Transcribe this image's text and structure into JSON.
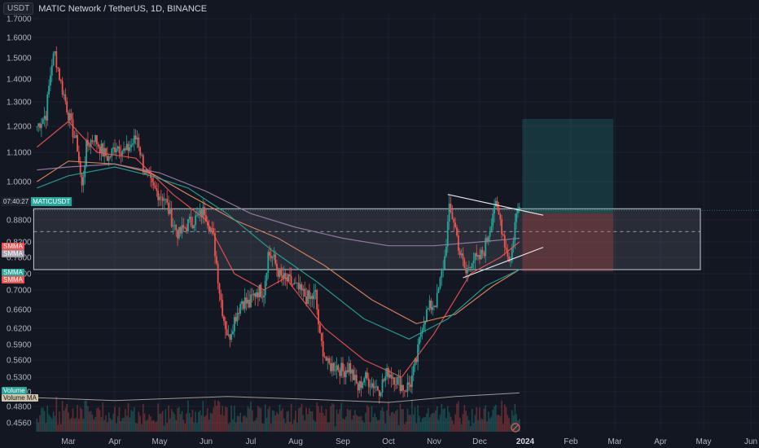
{
  "header": {
    "currency": "USDT",
    "title": "MATIC Network / TetherUS, 1D, BINANCE"
  },
  "price_tag": {
    "countdown": "07:40:27",
    "symbol": "MATICUSDT"
  },
  "indicator_tags": [
    {
      "text": "SMMA",
      "color": "#ef5350",
      "y": 298
    },
    {
      "text": "SMMA",
      "color": "#9e9ea8",
      "y": 307
    },
    {
      "text": "SMMA",
      "color": "#26a69a",
      "y": 330
    },
    {
      "text": "SMMA",
      "color": "#ef5350",
      "y": 339
    },
    {
      "text": "Volume",
      "color": "#26a69a",
      "y": 475
    },
    {
      "text": "Volume MA",
      "color": "#d1c4a8",
      "y": 484
    }
  ],
  "colors": {
    "up": "#26a69a",
    "down": "#ef5350",
    "background": "#131722",
    "grid": "#1e2230",
    "smma_red": "#f05450",
    "smma_orange": "#e78a5b",
    "smma_purple": "#9c7fa8",
    "smma_teal": "#26a69a"
  },
  "chart_data": {
    "type": "candlestick",
    "title": "MATIC Network / TetherUS, 1D, BINANCE",
    "y_ticks": [
      "1.7000",
      "1.6000",
      "1.5000",
      "1.4000",
      "1.3000",
      "1.2000",
      "1.1000",
      "1.0000",
      "0.8800",
      "0.8200",
      "0.7800",
      "0.7400",
      "0.7000",
      "0.6600",
      "0.6200",
      "0.5900",
      "0.5600",
      "0.5300",
      "0.5050",
      "0.4800",
      "0.4560"
    ],
    "y_tick_values": [
      1.7,
      1.6,
      1.5,
      1.4,
      1.3,
      1.2,
      1.1,
      1.0,
      0.88,
      0.82,
      0.78,
      0.74,
      0.7,
      0.66,
      0.62,
      0.59,
      0.56,
      0.53,
      0.505,
      0.48,
      0.456
    ],
    "x_ticks": [
      "Mar",
      "Apr",
      "May",
      "Jun",
      "Jul",
      "Aug",
      "Sep",
      "Oct",
      "Nov",
      "Dec",
      "2024",
      "Feb",
      "Mar",
      "Apr",
      "May",
      "Jun"
    ],
    "x_tick_dates": [
      "2023-03-01",
      "2023-04-01",
      "2023-05-01",
      "2023-06-01",
      "2023-07-01",
      "2023-08-01",
      "2023-09-01",
      "2023-10-01",
      "2023-11-01",
      "2023-12-01",
      "2024-01-01",
      "2024-02-01",
      "2024-03-01",
      "2024-04-01",
      "2024-05-01",
      "2024-06-01"
    ],
    "start_date": "2023-02-08",
    "close_anchors": [
      [
        "2023-02-08",
        1.2
      ],
      [
        "2023-02-14",
        1.25
      ],
      [
        "2023-02-18",
        1.48
      ],
      [
        "2023-02-20",
        1.52
      ],
      [
        "2023-02-24",
        1.38
      ],
      [
        "2023-03-03",
        1.2
      ],
      [
        "2023-03-07",
        1.12
      ],
      [
        "2023-03-10",
        0.98
      ],
      [
        "2023-03-13",
        1.12
      ],
      [
        "2023-03-18",
        1.16
      ],
      [
        "2023-03-24",
        1.1
      ],
      [
        "2023-03-28",
        1.08
      ],
      [
        "2023-04-02",
        1.13
      ],
      [
        "2023-04-08",
        1.1
      ],
      [
        "2023-04-12",
        1.13
      ],
      [
        "2023-04-16",
        1.16
      ],
      [
        "2023-04-20",
        1.05
      ],
      [
        "2023-04-26",
        0.98
      ],
      [
        "2023-05-04",
        0.95
      ],
      [
        "2023-05-10",
        0.87
      ],
      [
        "2023-05-14",
        0.84
      ],
      [
        "2023-05-20",
        0.87
      ],
      [
        "2023-05-27",
        0.89
      ],
      [
        "2023-05-31",
        0.91
      ],
      [
        "2023-06-06",
        0.83
      ],
      [
        "2023-06-10",
        0.7
      ],
      [
        "2023-06-13",
        0.64
      ],
      [
        "2023-06-16",
        0.6
      ],
      [
        "2023-06-20",
        0.64
      ],
      [
        "2023-06-25",
        0.68
      ],
      [
        "2023-06-30",
        0.67
      ],
      [
        "2023-07-05",
        0.7
      ],
      [
        "2023-07-10",
        0.7
      ],
      [
        "2023-07-13",
        0.79
      ],
      [
        "2023-07-16",
        0.78
      ],
      [
        "2023-07-22",
        0.73
      ],
      [
        "2023-07-28",
        0.72
      ],
      [
        "2023-08-03",
        0.7
      ],
      [
        "2023-08-10",
        0.68
      ],
      [
        "2023-08-14",
        0.69
      ],
      [
        "2023-08-17",
        0.6
      ],
      [
        "2023-08-22",
        0.55
      ],
      [
        "2023-08-28",
        0.55
      ],
      [
        "2023-09-01",
        0.54
      ],
      [
        "2023-09-05",
        0.55
      ],
      [
        "2023-09-11",
        0.51
      ],
      [
        "2023-09-15",
        0.53
      ],
      [
        "2023-09-20",
        0.52
      ],
      [
        "2023-09-25",
        0.51
      ],
      [
        "2023-10-01",
        0.54
      ],
      [
        "2023-10-05",
        0.53
      ],
      [
        "2023-10-12",
        0.51
      ],
      [
        "2023-10-16",
        0.52
      ],
      [
        "2023-10-20",
        0.56
      ],
      [
        "2023-10-24",
        0.63
      ],
      [
        "2023-10-28",
        0.66
      ],
      [
        "2023-11-03",
        0.68
      ],
      [
        "2023-11-08",
        0.78
      ],
      [
        "2023-11-11",
        0.91
      ],
      [
        "2023-11-14",
        0.88
      ],
      [
        "2023-11-18",
        0.79
      ],
      [
        "2023-11-22",
        0.74
      ],
      [
        "2023-11-26",
        0.78
      ],
      [
        "2023-11-30",
        0.77
      ],
      [
        "2023-12-04",
        0.8
      ],
      [
        "2023-12-08",
        0.86
      ],
      [
        "2023-12-11",
        0.93
      ],
      [
        "2023-12-15",
        0.88
      ],
      [
        "2023-12-19",
        0.8
      ],
      [
        "2023-12-22",
        0.77
      ],
      [
        "2023-12-25",
        0.87
      ],
      [
        "2023-12-28",
        0.94
      ]
    ],
    "smma": [
      {
        "color": "#f05450",
        "points": [
          [
            "2023-02-08",
            1.12
          ],
          [
            "2023-03-01",
            1.22
          ],
          [
            "2023-03-20",
            1.1
          ],
          [
            "2023-04-15",
            1.08
          ],
          [
            "2023-05-10",
            0.96
          ],
          [
            "2023-06-01",
            0.88
          ],
          [
            "2023-06-20",
            0.74
          ],
          [
            "2023-07-10",
            0.7
          ],
          [
            "2023-07-25",
            0.73
          ],
          [
            "2023-08-20",
            0.62
          ],
          [
            "2023-09-15",
            0.56
          ],
          [
            "2023-10-10",
            0.53
          ],
          [
            "2023-11-01",
            0.61
          ],
          [
            "2023-11-25",
            0.74
          ],
          [
            "2023-12-15",
            0.78
          ],
          [
            "2023-12-28",
            0.82
          ]
        ]
      },
      {
        "color": "#e78a5b",
        "points": [
          [
            "2023-02-08",
            1.0
          ],
          [
            "2023-03-01",
            1.07
          ],
          [
            "2023-04-01",
            1.06
          ],
          [
            "2023-04-25",
            1.03
          ],
          [
            "2023-05-20",
            0.96
          ],
          [
            "2023-06-20",
            0.88
          ],
          [
            "2023-07-20",
            0.83
          ],
          [
            "2023-08-20",
            0.76
          ],
          [
            "2023-09-20",
            0.68
          ],
          [
            "2023-10-20",
            0.63
          ],
          [
            "2023-11-15",
            0.65
          ],
          [
            "2023-12-10",
            0.71
          ],
          [
            "2023-12-28",
            0.75
          ]
        ]
      },
      {
        "color": "#9c7fa8",
        "points": [
          [
            "2023-02-08",
            1.04
          ],
          [
            "2023-03-01",
            1.05
          ],
          [
            "2023-04-01",
            1.06
          ],
          [
            "2023-05-01",
            1.03
          ],
          [
            "2023-06-01",
            0.97
          ],
          [
            "2023-07-01",
            0.9
          ],
          [
            "2023-08-01",
            0.86
          ],
          [
            "2023-09-01",
            0.83
          ],
          [
            "2023-10-01",
            0.81
          ],
          [
            "2023-11-01",
            0.81
          ],
          [
            "2023-12-01",
            0.82
          ],
          [
            "2023-12-28",
            0.83
          ]
        ]
      },
      {
        "color": "#26a69a",
        "points": [
          [
            "2023-02-08",
            0.98
          ],
          [
            "2023-03-01",
            1.02
          ],
          [
            "2023-04-01",
            1.05
          ],
          [
            "2023-04-25",
            1.02
          ],
          [
            "2023-05-20",
            0.98
          ],
          [
            "2023-06-15",
            0.9
          ],
          [
            "2023-07-15",
            0.8
          ],
          [
            "2023-08-15",
            0.72
          ],
          [
            "2023-09-15",
            0.64
          ],
          [
            "2023-10-15",
            0.6
          ],
          [
            "2023-11-10",
            0.64
          ],
          [
            "2023-12-05",
            0.71
          ],
          [
            "2023-12-28",
            0.75
          ]
        ]
      }
    ],
    "zone": {
      "top": 0.915,
      "bottom": 0.75,
      "mid": 0.848
    },
    "triangle_upper": [
      [
        "2023-11-10",
        0.96
      ],
      [
        "2024-01-01",
        0.905
      ]
    ],
    "triangle_lower": [
      [
        "2023-11-20",
        0.73
      ],
      [
        "2024-01-01",
        0.785
      ]
    ],
    "long_position": {
      "start": "2023-12-30",
      "end": "2024-02-29",
      "target": 1.23,
      "entry": 0.9,
      "stop": 0.745
    },
    "current_price": 0.905,
    "volume_ma": [
      [
        "2023-02-08",
        0.495
      ],
      [
        "2023-04-01",
        0.49
      ],
      [
        "2023-06-15",
        0.497
      ],
      [
        "2023-08-01",
        0.493
      ],
      [
        "2023-10-01",
        0.487
      ],
      [
        "2023-11-15",
        0.497
      ],
      [
        "2023-12-28",
        0.503
      ]
    ]
  }
}
